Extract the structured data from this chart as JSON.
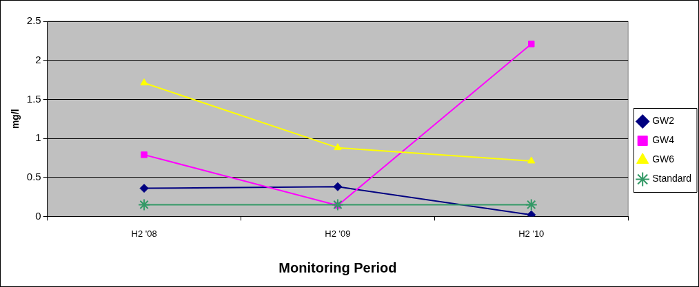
{
  "chart_data": {
    "type": "line",
    "xlabel": "Monitoring Period",
    "ylabel": "mg/l",
    "categories": [
      "H2 '08",
      "H2 '09",
      "H2 '10"
    ],
    "series": [
      {
        "name": "GW2",
        "color": "#000080",
        "marker": "diamond",
        "values": [
          0.36,
          0.38,
          0.02
        ]
      },
      {
        "name": "GW4",
        "color": "#ff00ff",
        "marker": "square",
        "values": [
          0.79,
          0.14,
          2.21
        ]
      },
      {
        "name": "GW6",
        "color": "#ffff00",
        "marker": "triangle",
        "values": [
          1.71,
          0.88,
          0.71
        ]
      },
      {
        "name": "Standard",
        "color": "#339966",
        "marker": "cross",
        "values": [
          0.15,
          0.15,
          0.15
        ]
      }
    ],
    "ylim": [
      0,
      2.5
    ],
    "yticks": [
      0,
      0.5,
      1,
      1.5,
      2,
      2.5
    ],
    "grid": "y",
    "legend": "right",
    "line_style": "solid"
  }
}
